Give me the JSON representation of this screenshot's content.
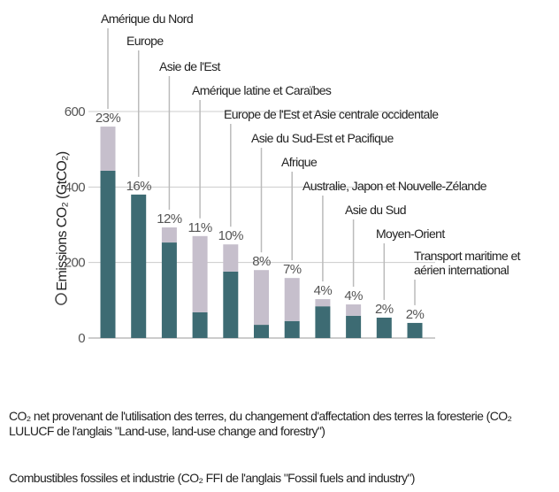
{
  "chart_data": {
    "type": "stacked-bar",
    "y_label": "Emissions CO₂ (GtCO₂)",
    "categories": [
      [
        "Amérique du Nord"
      ],
      [
        "Europe"
      ],
      [
        "Asie de l'Est"
      ],
      [
        "Amérique latine et Caraïbes"
      ],
      [
        "Europe de l'Est et Asie centrale occidentale"
      ],
      [
        "Asie du Sud-Est et Pacifique"
      ],
      [
        "Afrique"
      ],
      [
        "Australie, Japon et Nouvelle-Zélande"
      ],
      [
        "Asie du Sud"
      ],
      [
        "Moyen-Orient"
      ],
      [
        "Transport maritime et",
        "aérien international"
      ]
    ],
    "share_labels": [
      "23%",
      "16%",
      "12%",
      "11%",
      "10%",
      "8%",
      "7%",
      "4%",
      "4%",
      "2%",
      "2%"
    ],
    "series": [
      {
        "name": "Combustibles fossiles et industrie (CO₂ FFI de l'anglais \"Fossil fuels and industry\")",
        "color": "#3d6b73",
        "values": [
          443,
          380,
          253,
          68,
          176,
          35,
          45,
          84,
          59,
          54,
          40
        ]
      },
      {
        "name": "CO₂ net provenant de l'utilisation des terres, du changement d'affectation des terres la foresterie (CO₂ LULUCF de l'anglais \"Land-use, land-use change and forestry\")",
        "color": "#c6bfcc",
        "values": [
          117,
          0,
          40,
          202,
          72,
          145,
          114,
          19,
          30,
          0,
          0
        ]
      }
    ],
    "ylim": [
      0,
      600
    ],
    "yticks": [
      0,
      200,
      400,
      600
    ],
    "grid": true
  }
}
